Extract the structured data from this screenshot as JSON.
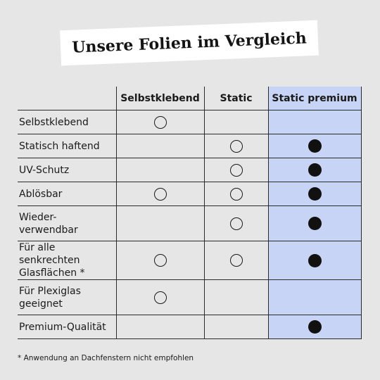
{
  "title": "Unsere Folien im Vergleich",
  "columns": [
    "Selbstklebend",
    "Static",
    "Static premium"
  ],
  "rows": [
    {
      "label_lines": [
        "Selbstklebend"
      ],
      "marks": [
        "empty",
        "none",
        "none"
      ]
    },
    {
      "label_lines": [
        "Statisch haftend"
      ],
      "marks": [
        "none",
        "empty",
        "filled"
      ]
    },
    {
      "label_lines": [
        "UV-Schutz"
      ],
      "marks": [
        "none",
        "empty",
        "filled"
      ]
    },
    {
      "label_lines": [
        "Ablösbar"
      ],
      "marks": [
        "empty",
        "empty",
        "filled"
      ]
    },
    {
      "label_lines": [
        "Wieder-",
        "verwendbar"
      ],
      "marks": [
        "none",
        "empty",
        "filled"
      ]
    },
    {
      "label_lines": [
        "Für alle senkrechten",
        "Glasflächen *"
      ],
      "marks": [
        "empty",
        "empty",
        "filled"
      ]
    },
    {
      "label_lines": [
        "Für Plexiglas",
        "geeignet"
      ],
      "marks": [
        "empty",
        "none",
        "none"
      ]
    },
    {
      "label_lines": [
        "Premium-Qualität"
      ],
      "marks": [
        "none",
        "none",
        "filled"
      ]
    }
  ],
  "footnote": "* Anwendung an Dachfenstern nicht empfohlen",
  "colors": {
    "background": "#e6e6e6",
    "premium_highlight": "#c8d4f5",
    "banner": "#ffffff"
  },
  "icons": {
    "empty": "open-circle-icon",
    "filled": "filled-circle-icon"
  }
}
